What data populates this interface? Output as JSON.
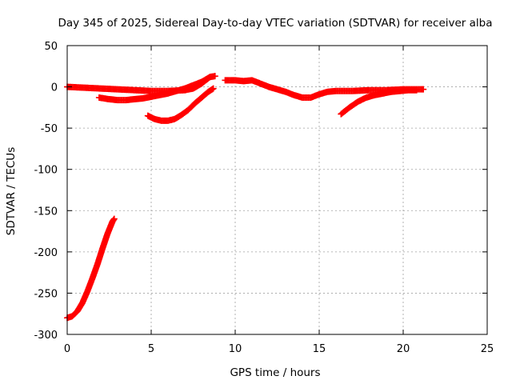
{
  "chart_data": {
    "type": "scatter",
    "title": "Day 345 of 2025, Sidereal Day-to-day VTEC variation (SDTVAR) for receiver alba",
    "xlabel": "GPS time / hours",
    "ylabel": "SDTVAR / TECUs",
    "xlim": [
      0,
      25
    ],
    "ylim": [
      -300,
      50
    ],
    "xticks": [
      0,
      5,
      10,
      15,
      20,
      25
    ],
    "yticks": [
      50,
      0,
      -50,
      -100,
      -150,
      -200,
      -250,
      -300
    ],
    "grid": true,
    "marker": "plus",
    "color": "#ff0000",
    "series": [
      {
        "name": "arc1",
        "x": [
          0.0,
          0.3,
          0.6,
          0.9,
          1.2,
          1.5,
          1.8,
          2.1,
          2.4,
          2.7,
          2.8
        ],
        "y": [
          -280,
          -278,
          -272,
          -262,
          -248,
          -232,
          -215,
          -196,
          -178,
          -163,
          -160
        ]
      },
      {
        "name": "arc2",
        "x": [
          0.0,
          1.0,
          2.0,
          3.0,
          4.0,
          5.0,
          6.0,
          7.0,
          7.5,
          8.0,
          8.5,
          8.8
        ],
        "y": [
          0,
          -1,
          -2,
          -3,
          -4,
          -5,
          -5,
          -4,
          -2,
          4,
          12,
          13
        ]
      },
      {
        "name": "arc3",
        "x": [
          1.9,
          2.5,
          3.0,
          3.5,
          4.0,
          4.5,
          5.0,
          5.5,
          6.0,
          6.5,
          7.0,
          7.5,
          8.0,
          8.5
        ],
        "y": [
          -13,
          -15,
          -16,
          -16,
          -15,
          -14,
          -12,
          -10,
          -8,
          -5,
          -2,
          2,
          6,
          12
        ]
      },
      {
        "name": "arc4",
        "x": [
          4.8,
          5.2,
          5.6,
          6.0,
          6.4,
          6.8,
          7.2,
          7.6,
          8.0,
          8.4,
          8.7
        ],
        "y": [
          -35,
          -39,
          -41,
          -41,
          -39,
          -34,
          -28,
          -20,
          -13,
          -6,
          -2
        ]
      },
      {
        "name": "arc5",
        "x": [
          9.4,
          10.0,
          10.5,
          11.0,
          11.5,
          12.0,
          12.5,
          13.0,
          13.5,
          14.0,
          14.5,
          15.0,
          15.5,
          16.0,
          17.0,
          18.0,
          19.0,
          20.0,
          21.0,
          21.2
        ],
        "y": [
          8,
          8,
          7,
          8,
          4,
          0,
          -3,
          -6,
          -10,
          -13,
          -13,
          -9,
          -6,
          -5,
          -5,
          -4,
          -4,
          -3,
          -3,
          -3
        ]
      },
      {
        "name": "arc6",
        "x": [
          16.3,
          16.8,
          17.3,
          17.8,
          18.3,
          18.8,
          19.3,
          19.8,
          20.3,
          20.8
        ],
        "y": [
          -33,
          -25,
          -18,
          -13,
          -10,
          -8,
          -6,
          -5,
          -4,
          -4
        ]
      }
    ]
  }
}
